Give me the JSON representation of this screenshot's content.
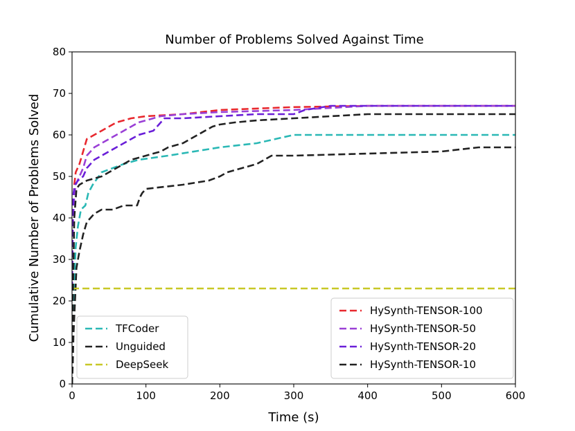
{
  "chart_data": {
    "type": "line",
    "title": "Number of Problems Solved Against Time",
    "xlabel": "Time (s)",
    "ylabel": "Cumulative Number of Problems Solved",
    "xlim": [
      0,
      600
    ],
    "ylim": [
      0,
      80
    ],
    "xticks": [
      "0",
      "100",
      "200",
      "300",
      "400",
      "500",
      "600"
    ],
    "yticks": [
      "0",
      "10",
      "20",
      "30",
      "40",
      "50",
      "60",
      "70",
      "80"
    ],
    "grid": false,
    "series": [
      {
        "name": "TFCoder",
        "color": "#2ab8b5",
        "legend": "lower-left",
        "x": [
          0,
          1,
          3,
          5,
          8,
          12,
          18,
          22,
          28,
          40,
          55,
          70,
          90,
          130,
          200,
          250,
          300,
          320,
          400,
          500,
          600
        ],
        "y": [
          0,
          15,
          25,
          33,
          38,
          42,
          43,
          46,
          48,
          51,
          52,
          53,
          54,
          55,
          57,
          58,
          60,
          60,
          60,
          60,
          60
        ]
      },
      {
        "name": "Unguided",
        "color": "#222222",
        "legend": "lower-left",
        "x": [
          0,
          1,
          2,
          4,
          6,
          10,
          15,
          20,
          25,
          30,
          40,
          55,
          70,
          88,
          92,
          95,
          100,
          150,
          185,
          200,
          210,
          230,
          250,
          270,
          300,
          400,
          500,
          550,
          600
        ],
        "y": [
          0,
          5,
          12,
          20,
          28,
          32,
          36,
          39,
          40,
          41,
          42,
          42,
          43,
          43,
          45,
          46,
          47,
          48,
          49,
          50,
          51,
          52,
          53,
          55,
          55,
          55.5,
          56,
          57,
          57
        ]
      },
      {
        "name": "DeepSeek",
        "color": "#c8c826",
        "legend": "lower-left",
        "x": [
          0,
          600
        ],
        "y": [
          23,
          23
        ]
      },
      {
        "name": "HySynth-TENSOR-100",
        "color": "#e8282e",
        "legend": "lower-right",
        "x": [
          0,
          1,
          3,
          5,
          10,
          15,
          20,
          30,
          40,
          50,
          60,
          70,
          80,
          100,
          150,
          200,
          300,
          400,
          500,
          600
        ],
        "y": [
          23,
          40,
          48,
          51,
          53,
          56,
          59,
          60,
          61,
          62,
          63,
          63.5,
          64,
          64.5,
          65,
          66,
          66.7,
          67,
          67,
          67
        ]
      },
      {
        "name": "HySynth-TENSOR-50",
        "color": "#9a3fd6",
        "legend": "lower-right",
        "x": [
          0,
          1,
          3,
          5,
          10,
          15,
          20,
          30,
          40,
          50,
          60,
          70,
          80,
          90,
          110,
          120,
          150,
          200,
          300,
          400,
          500,
          600
        ],
        "y": [
          23,
          38,
          45,
          48,
          50,
          52,
          55,
          57,
          58,
          59,
          60,
          61,
          62,
          63,
          64,
          64.5,
          65,
          65.5,
          66,
          67,
          67,
          67
        ]
      },
      {
        "name": "HySynth-TENSOR-20",
        "color": "#6a1fd8",
        "legend": "lower-right",
        "x": [
          0,
          1,
          2,
          4,
          8,
          15,
          20,
          30,
          40,
          50,
          60,
          70,
          80,
          90,
          100,
          110,
          120,
          125,
          150,
          200,
          250,
          300,
          315,
          350,
          400,
          500,
          600
        ],
        "y": [
          23,
          40,
          46,
          48,
          49,
          50,
          52,
          54,
          55,
          56,
          57,
          58,
          59,
          60,
          60.5,
          61,
          63,
          64,
          64,
          64.5,
          65,
          65,
          66,
          67,
          67,
          67,
          67
        ]
      },
      {
        "name": "HySynth-TENSOR-10",
        "color": "#222222",
        "legend": "lower-right",
        "x": [
          0,
          1,
          3,
          6,
          10,
          20,
          30,
          40,
          50,
          60,
          70,
          80,
          90,
          100,
          120,
          130,
          150,
          170,
          190,
          200,
          220,
          250,
          300,
          350,
          400,
          500,
          600
        ],
        "y": [
          0,
          20,
          40,
          47,
          48,
          49,
          49.5,
          50,
          51,
          52,
          53,
          54,
          54.5,
          55,
          56,
          57,
          58,
          60,
          62,
          62.5,
          63,
          63.5,
          64,
          64.5,
          65,
          65,
          65
        ]
      }
    ]
  }
}
